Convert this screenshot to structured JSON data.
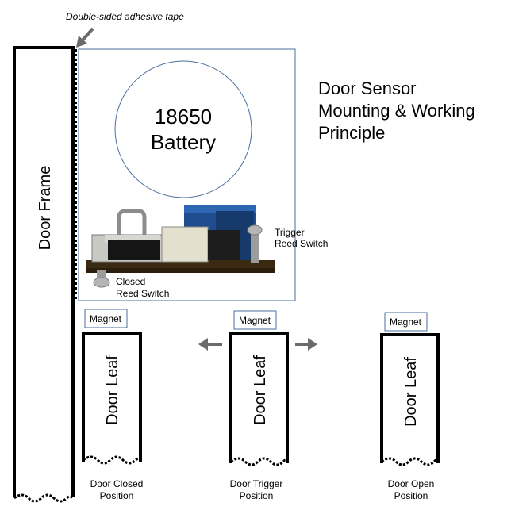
{
  "title": {
    "line1": "Door Sensor",
    "line2": "Mounting & Working",
    "line3": "Principle"
  },
  "tape_label": "Double-sided adhesive tape",
  "battery": {
    "line1": "18650",
    "line2": "Battery"
  },
  "door_frame_label": "Door Frame",
  "trigger_switch": {
    "line1": "Trigger",
    "line2": "Reed Switch"
  },
  "closed_switch": {
    "line1": "Closed",
    "line2": "Reed Switch"
  },
  "magnet_label": "Magnet",
  "door_leaf_label": "Door Leaf",
  "positions": [
    {
      "line1": "Door Closed",
      "line2": "Position"
    },
    {
      "line1": "Door Trigger",
      "line2": "Position"
    },
    {
      "line1": "Door Open",
      "line2": "Position"
    }
  ],
  "colors": {
    "outline": "#000000",
    "box_border": "#4a6f9c",
    "arrow": "#6b6b6b",
    "pcb": "#3b2a12",
    "relay_blue": "#1f4d8f"
  }
}
